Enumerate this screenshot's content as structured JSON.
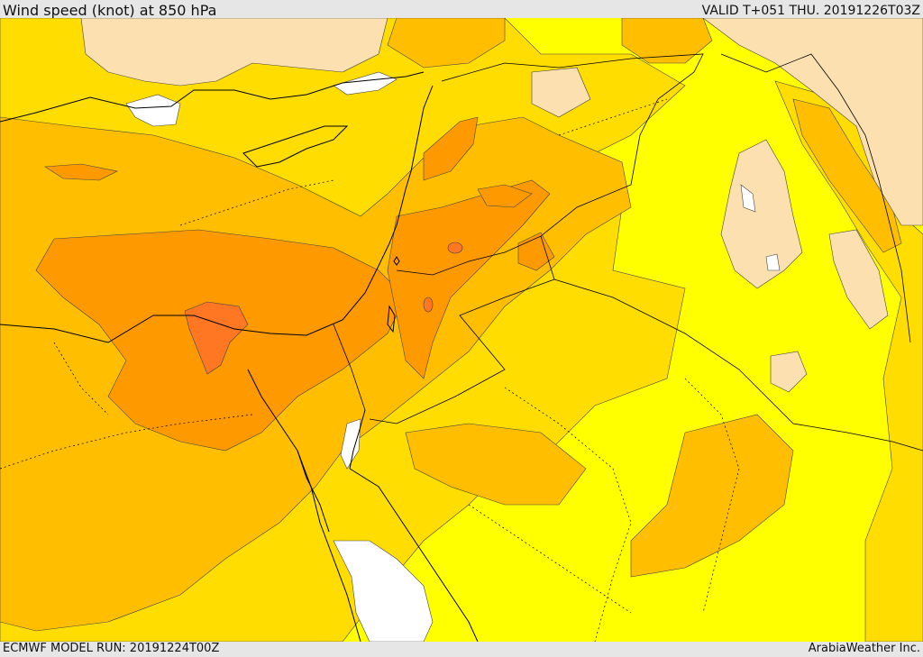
{
  "header": {
    "title": "Wind speed (knot) at 850 hPa",
    "valid": "VALID T+051 THU. 20191226T03Z"
  },
  "footer": {
    "model_run": "ECMWF MODEL RUN: 20191224T00Z",
    "credit": "ArabiaWeather Inc."
  },
  "palette": {
    "calm": "#ffffff",
    "very_light": "#fde0b0",
    "light": "#ffff00",
    "moderate": "#ffdd00",
    "fresh": "#ffbf00",
    "strong": "#ff9900",
    "very_strong": "#ff7722",
    "coastline": "#000000"
  }
}
